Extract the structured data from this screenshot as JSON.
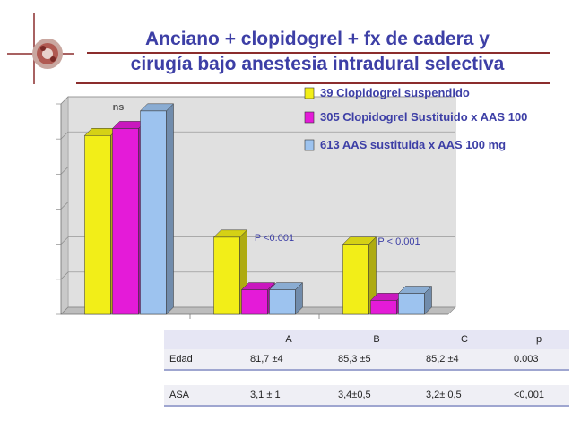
{
  "slide": {
    "title_line1": "Anciano + clopidogrel + fx de cadera y",
    "title_line2": "cirugía bajo anestesia intradural selectiva"
  },
  "chart_data": {
    "type": "bar",
    "bar_style": "3d",
    "categories": [
      "",
      "",
      ""
    ],
    "ylim": [
      0,
      6
    ],
    "grid": true,
    "legend_position": "top-right",
    "series": [
      {
        "name": "39  Clopidogrel suspendido",
        "color": "#f2ee18",
        "values": [
          5.1,
          2.2,
          2.0
        ]
      },
      {
        "name": "305 Clopidogrel Sustituido x AAS 100",
        "color": "#e41bd8",
        "values": [
          5.3,
          0.7,
          0.4
        ]
      },
      {
        "name": "613  AAS sustituida x AAS 100 mg",
        "color": "#9dc3ef",
        "values": [
          5.8,
          0.7,
          0.6
        ]
      }
    ],
    "annotations": [
      {
        "label": "ns",
        "group": 0
      },
      {
        "label": "P <0.001",
        "group": 1
      },
      {
        "label": "P < 0.001",
        "group": 2
      }
    ]
  },
  "table": {
    "headers": [
      "",
      "A",
      "B",
      "C",
      "p"
    ],
    "rows": [
      [
        "Edad",
        "81,7 ±4",
        "85,3 ±5",
        "85,2 ±4",
        "0.003"
      ],
      [
        "ASA",
        "3,1 ± 1",
        "3,4±0,5",
        "3,2± 0,5",
        "<0,001"
      ]
    ]
  },
  "colors": {
    "title": "#3d3fa6",
    "legend_text": "#3d3fa6",
    "plot_background": "#e0e0e0",
    "title_rule": "#8b2d2d"
  }
}
